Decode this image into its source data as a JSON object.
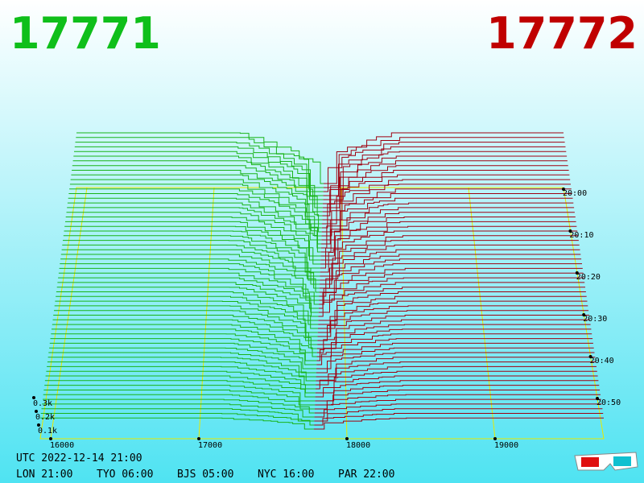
{
  "header": {
    "bid": "17771",
    "ask": "17772"
  },
  "price_axis": [
    "16000",
    "17000",
    "18000",
    "19000"
  ],
  "time_axis": [
    "20:00",
    "20:10",
    "20:20",
    "20:30",
    "20:40",
    "20:50"
  ],
  "depth_axis": [
    "0.3k",
    "0.2k",
    "0.1k"
  ],
  "footer": {
    "utc": "UTC 2022-12-14 21:00",
    "zones": [
      "LON 21:00",
      "TYO 06:00",
      "BJS 05:00",
      "NYC 16:00",
      "PAR 22:00"
    ]
  }
}
